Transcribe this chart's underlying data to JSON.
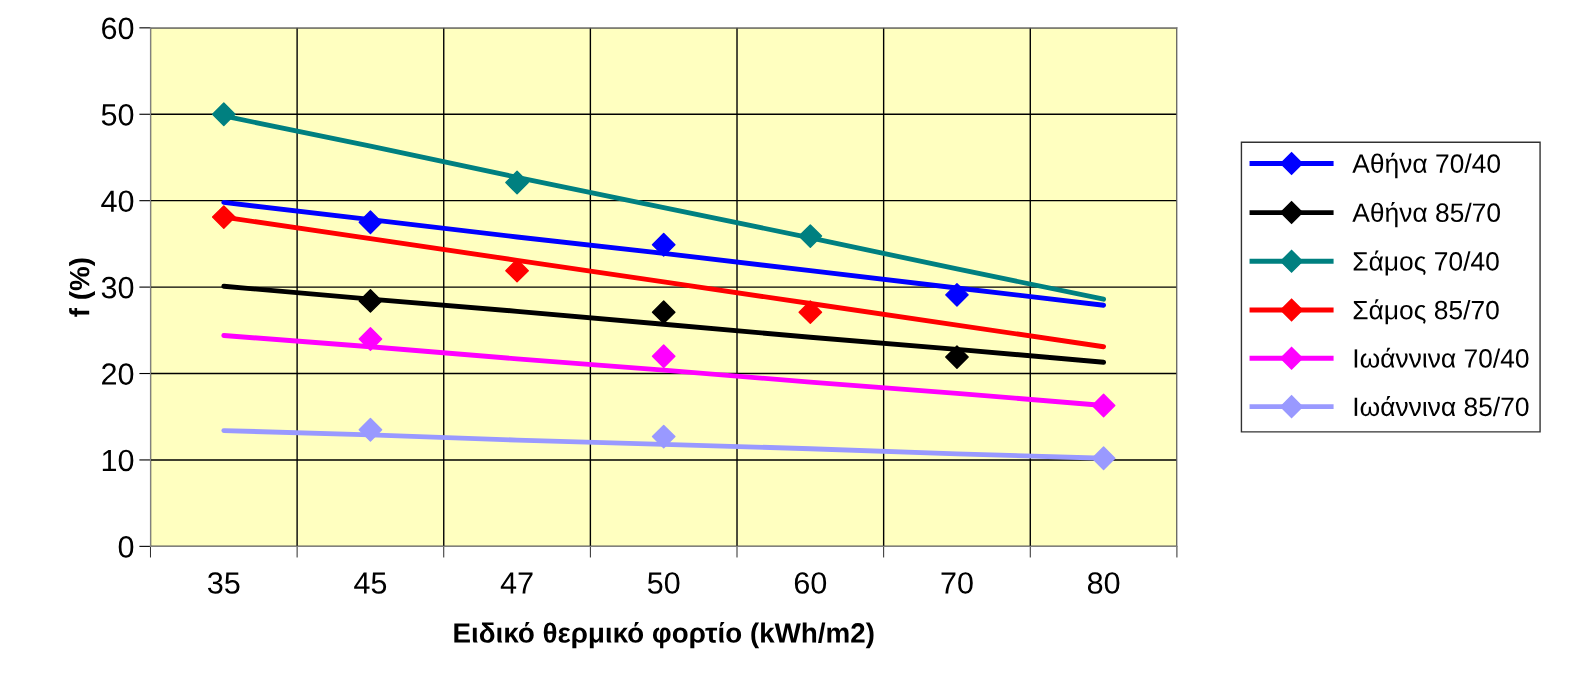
{
  "chart_data": {
    "type": "scatter",
    "xlabel": "Ειδικό θερμικό φορτίο (kWh/m2)",
    "ylabel": "f (%)",
    "categories": [
      "35",
      "45",
      "47",
      "50",
      "60",
      "70",
      "80"
    ],
    "ylim": [
      0,
      60
    ],
    "yticks": [
      0,
      10,
      20,
      30,
      40,
      50,
      60
    ],
    "grid": true,
    "legend": "right",
    "marker": "diamond",
    "series": [
      {
        "name": "Αθήνα 70/40",
        "color": "#0000ff",
        "values": [
          null,
          37.5,
          null,
          34.9,
          null,
          29.1,
          null
        ]
      },
      {
        "type": "line",
        "marker": "none",
        "color": "#0000ff",
        "values": [
          39.8,
          37.8,
          35.8,
          33.9,
          31.9,
          29.9,
          27.9
        ]
      },
      {
        "name": "Αθήνα 85/70",
        "color": "#000000",
        "values": [
          null,
          28.4,
          null,
          27.1,
          null,
          21.9,
          null
        ]
      },
      {
        "type": "line",
        "marker": "none",
        "color": "#000000",
        "values": [
          30.1,
          28.6,
          27.2,
          25.7,
          24.2,
          22.8,
          21.3
        ]
      },
      {
        "name": "Σάμος 70/40",
        "color": "#008080",
        "values": [
          50.0,
          null,
          42.1,
          null,
          35.9,
          null,
          null
        ]
      },
      {
        "type": "line",
        "marker": "none",
        "color": "#008080",
        "values": [
          49.8,
          46.3,
          42.7,
          39.2,
          35.7,
          32.1,
          28.6
        ]
      },
      {
        "name": "Σάμος 85/70",
        "color": "#ff0000",
        "values": [
          38.1,
          null,
          31.9,
          null,
          27.1,
          null,
          null
        ]
      },
      {
        "type": "line",
        "marker": "none",
        "color": "#ff0000",
        "values": [
          38.1,
          35.6,
          33.1,
          30.6,
          28.1,
          25.6,
          23.1
        ]
      },
      {
        "name": "Ιωάννινα 70/40",
        "color": "#ff00ff",
        "values": [
          null,
          24.0,
          null,
          22.0,
          null,
          null,
          16.3
        ]
      },
      {
        "type": "line",
        "marker": "none",
        "color": "#ff00ff",
        "values": [
          24.4,
          23.1,
          21.7,
          20.4,
          19.0,
          17.7,
          16.3
        ]
      },
      {
        "name": "Ιωάννινα 85/70",
        "color": "#9999ff",
        "values": [
          null,
          13.5,
          null,
          12.7,
          null,
          null,
          10.2
        ]
      },
      {
        "type": "line",
        "marker": "none",
        "color": "#9999ff",
        "values": [
          13.4,
          12.9,
          12.3,
          11.8,
          11.3,
          10.7,
          10.2
        ]
      }
    ]
  }
}
